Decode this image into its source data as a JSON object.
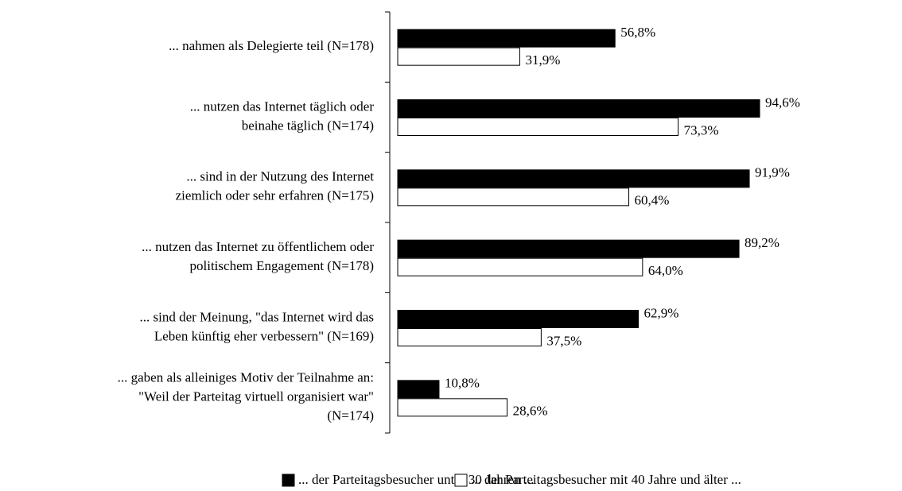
{
  "chart_data": {
    "type": "bar",
    "orientation": "horizontal",
    "categories": [
      [
        "... nahmen als Delegierte teil (N=178)"
      ],
      [
        "... nutzen das Internet täglich oder",
        "beinahe täglich (N=174)"
      ],
      [
        "... sind in der Nutzung des Internet",
        "ziemlich oder sehr erfahren  (N=175)"
      ],
      [
        "... nutzen das Internet zu öffentlichem oder",
        "politischem Engagement (N=178)"
      ],
      [
        "... sind der Meinung, \"das Internet wird das",
        "Leben künftig eher verbessern\" (N=169)"
      ],
      [
        "... gaben als alleiniges Motiv der Teilnahme an:",
        "\"Weil der Parteitag virtuell organisiert war\"",
        "(N=174)"
      ]
    ],
    "series": [
      {
        "name": "... der Parteitagsbesucher unter 30 Jahren ...",
        "color": "#000000",
        "values": [
          56.8,
          94.6,
          91.9,
          89.2,
          62.9,
          10.8
        ],
        "value_labels": [
          "56,8%",
          "94,6%",
          "91,9%",
          "89,2%",
          "62,9%",
          "10,8%"
        ]
      },
      {
        "name": "... der Parteitagsbesucher mit 40 Jahre und älter ...",
        "color": "#ffffff",
        "values": [
          31.9,
          73.3,
          60.4,
          64.0,
          37.5,
          28.6
        ],
        "value_labels": [
          "31,9%",
          "73,3%",
          "60,4%",
          "64,0%",
          "37,5%",
          "28,6%"
        ]
      }
    ],
    "xlim": [
      0,
      100
    ],
    "legend": "bottom"
  }
}
